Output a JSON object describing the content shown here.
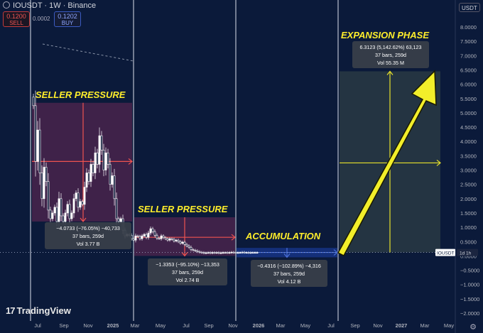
{
  "header": {
    "symbol": "IOUSDT · 1W · Binance",
    "sell_price": "0.1200",
    "sell_label": "SELL",
    "spread": "0.0002",
    "buy_price": "0.1202",
    "buy_label": "BUY",
    "currency": "USDT"
  },
  "price_tag": {
    "symbol": "IOUSDT",
    "timeframe": "1d 1h"
  },
  "watermark": "TradingView",
  "settings_icon": "gear-icon",
  "colors": {
    "background": "#0b1a3a",
    "annotation": "#ffee2b",
    "sell_zone": "#6b2a55",
    "accum_zone": "#17348a",
    "expansion_zone": "#3a4a48",
    "measure_red": "#ef5350",
    "measure_yellow": "#e8e22b",
    "candle_up": "#ffffff",
    "candle_down": "#ffffff"
  },
  "chart_data": {
    "type": "candlestick",
    "y_axis_ticks": [
      "8.0000",
      "7.5000",
      "7.0000",
      "6.5000",
      "6.0000",
      "5.5000",
      "5.0000",
      "4.5000",
      "4.0000",
      "3.5000",
      "3.0000",
      "2.5000",
      "2.0000",
      "1.5000",
      "1.0000",
      "0.5000",
      "0.0000",
      "−0.5000",
      "−1.0000",
      "−1.5000",
      "−2.0000"
    ],
    "ylim": [
      -2.2,
      8.3
    ],
    "x_axis_ticks": [
      "Jul",
      "Sep",
      "Nov",
      "2025",
      "Mar",
      "May",
      "Jul",
      "Sep",
      "Nov",
      "2026",
      "Mar",
      "May",
      "Jul",
      "Sep",
      "Nov",
      "2027",
      "Mar",
      "May"
    ],
    "annotations": [
      {
        "text": "SELLER PRESSURE"
      },
      {
        "text": "SELLER PRESSURE"
      },
      {
        "text": "ACCUMULATION"
      },
      {
        "text": "EXPANSION PHASE"
      }
    ],
    "measurements": [
      {
        "line1": "−4.0733 (−76.05%) −40,733",
        "line2": "37 bars, 259d",
        "line3": "Vol 3.77 B"
      },
      {
        "line1": "−1.3353 (−95.10%) −13,353",
        "line2": "37 bars, 259d",
        "line3": "Vol 2.74 B"
      },
      {
        "line1": "−0.4316 (−102.89%) −4,316",
        "line2": "37 bars, 259d",
        "line3": "Vol 4.12 B"
      },
      {
        "line1": "6.3123 (5,142.62%) 63,123",
        "line2": "37 bars, 259d",
        "line3": "Vol 55.35 M"
      }
    ],
    "current_price": 0.12,
    "weekly_closes": [
      5.25,
      3.3,
      4.4,
      2.9,
      2.0,
      3.1,
      2.6,
      1.6,
      1.3,
      1.5,
      1.7,
      1.2,
      2.0,
      1.4,
      1.2,
      1.5,
      1.8,
      1.3,
      1.5,
      2.0,
      2.2,
      1.7,
      1.9,
      1.8,
      2.4,
      2.9,
      2.6,
      3.2,
      2.9,
      3.6,
      3.2,
      4.2,
      3.7,
      3.0,
      3.6,
      3.2,
      2.5,
      2.8,
      2.0,
      1.3,
      1.2,
      1.3,
      0.9,
      0.7,
      0.75,
      0.72,
      0.6,
      0.55,
      0.7,
      0.68,
      0.6,
      0.7,
      0.75,
      0.65,
      0.8,
      0.95,
      0.85,
      0.72,
      0.62,
      0.6,
      0.7,
      0.64,
      0.6,
      0.55,
      0.6,
      0.58,
      0.52,
      0.55,
      0.5,
      0.44,
      0.48,
      0.4,
      0.35,
      0.3,
      0.22,
      0.2,
      0.18,
      0.15,
      0.13,
      0.12,
      0.1,
      0.11,
      0.12,
      0.1,
      0.12,
      0.11,
      0.12,
      0.1,
      0.11,
      0.12,
      0.12,
      0.11,
      0.12,
      0.13,
      0.12,
      0.11,
      0.12,
      0.12,
      0.13,
      0.12,
      0.12,
      0.11,
      0.12,
      0.12,
      0.12,
      0.12
    ]
  }
}
